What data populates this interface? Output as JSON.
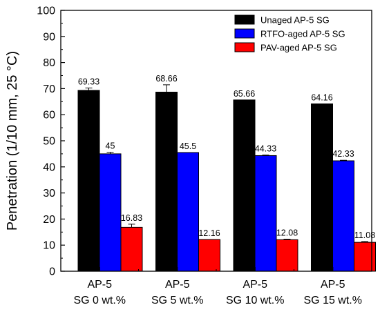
{
  "chart_data": {
    "type": "bar",
    "categories": [
      [
        "AP-5",
        "SG 0 wt.%"
      ],
      [
        "AP-5",
        "SG 5 wt.%"
      ],
      [
        "AP-5",
        "SG 10 wt.%"
      ],
      [
        "AP-5",
        "SG 15 wt.%"
      ]
    ],
    "series": [
      {
        "name": "Unaged AP-5 SG",
        "color": "#000000",
        "values": [
          69.33,
          68.66,
          65.66,
          64.16
        ],
        "labels": [
          "69.33",
          "68.66",
          "65.66",
          "64.16"
        ],
        "errors": [
          0.9,
          2.8,
          0,
          0
        ]
      },
      {
        "name": "RTFO-aged AP-5 SG",
        "color": "#0000ff",
        "values": [
          45,
          45.5,
          44.33,
          42.33
        ],
        "labels": [
          "45",
          "45.5",
          "44.33",
          "42.33"
        ],
        "errors": [
          0.6,
          0,
          0.2,
          0.2
        ]
      },
      {
        "name": "PAV-aged AP-5 SG",
        "color": "#ff0000",
        "values": [
          16.83,
          12.16,
          12.08,
          11.08
        ],
        "labels": [
          "16.83",
          "12.16",
          "12.08",
          "11.08"
        ],
        "errors": [
          1.2,
          0,
          0.2,
          0.3
        ]
      }
    ],
    "ylabel": "Penetration (1/10 mm, 25 °C)",
    "xlabel": "",
    "ylim": [
      0,
      100
    ],
    "yticks": [
      0,
      10,
      20,
      30,
      40,
      50,
      60,
      70,
      80,
      90,
      100
    ],
    "ytick_labels": [
      "0",
      "10",
      "20",
      "30",
      "40",
      "50",
      "60",
      "70",
      "80",
      "90",
      "100"
    ],
    "legend_position": "top-right",
    "grid": false
  }
}
